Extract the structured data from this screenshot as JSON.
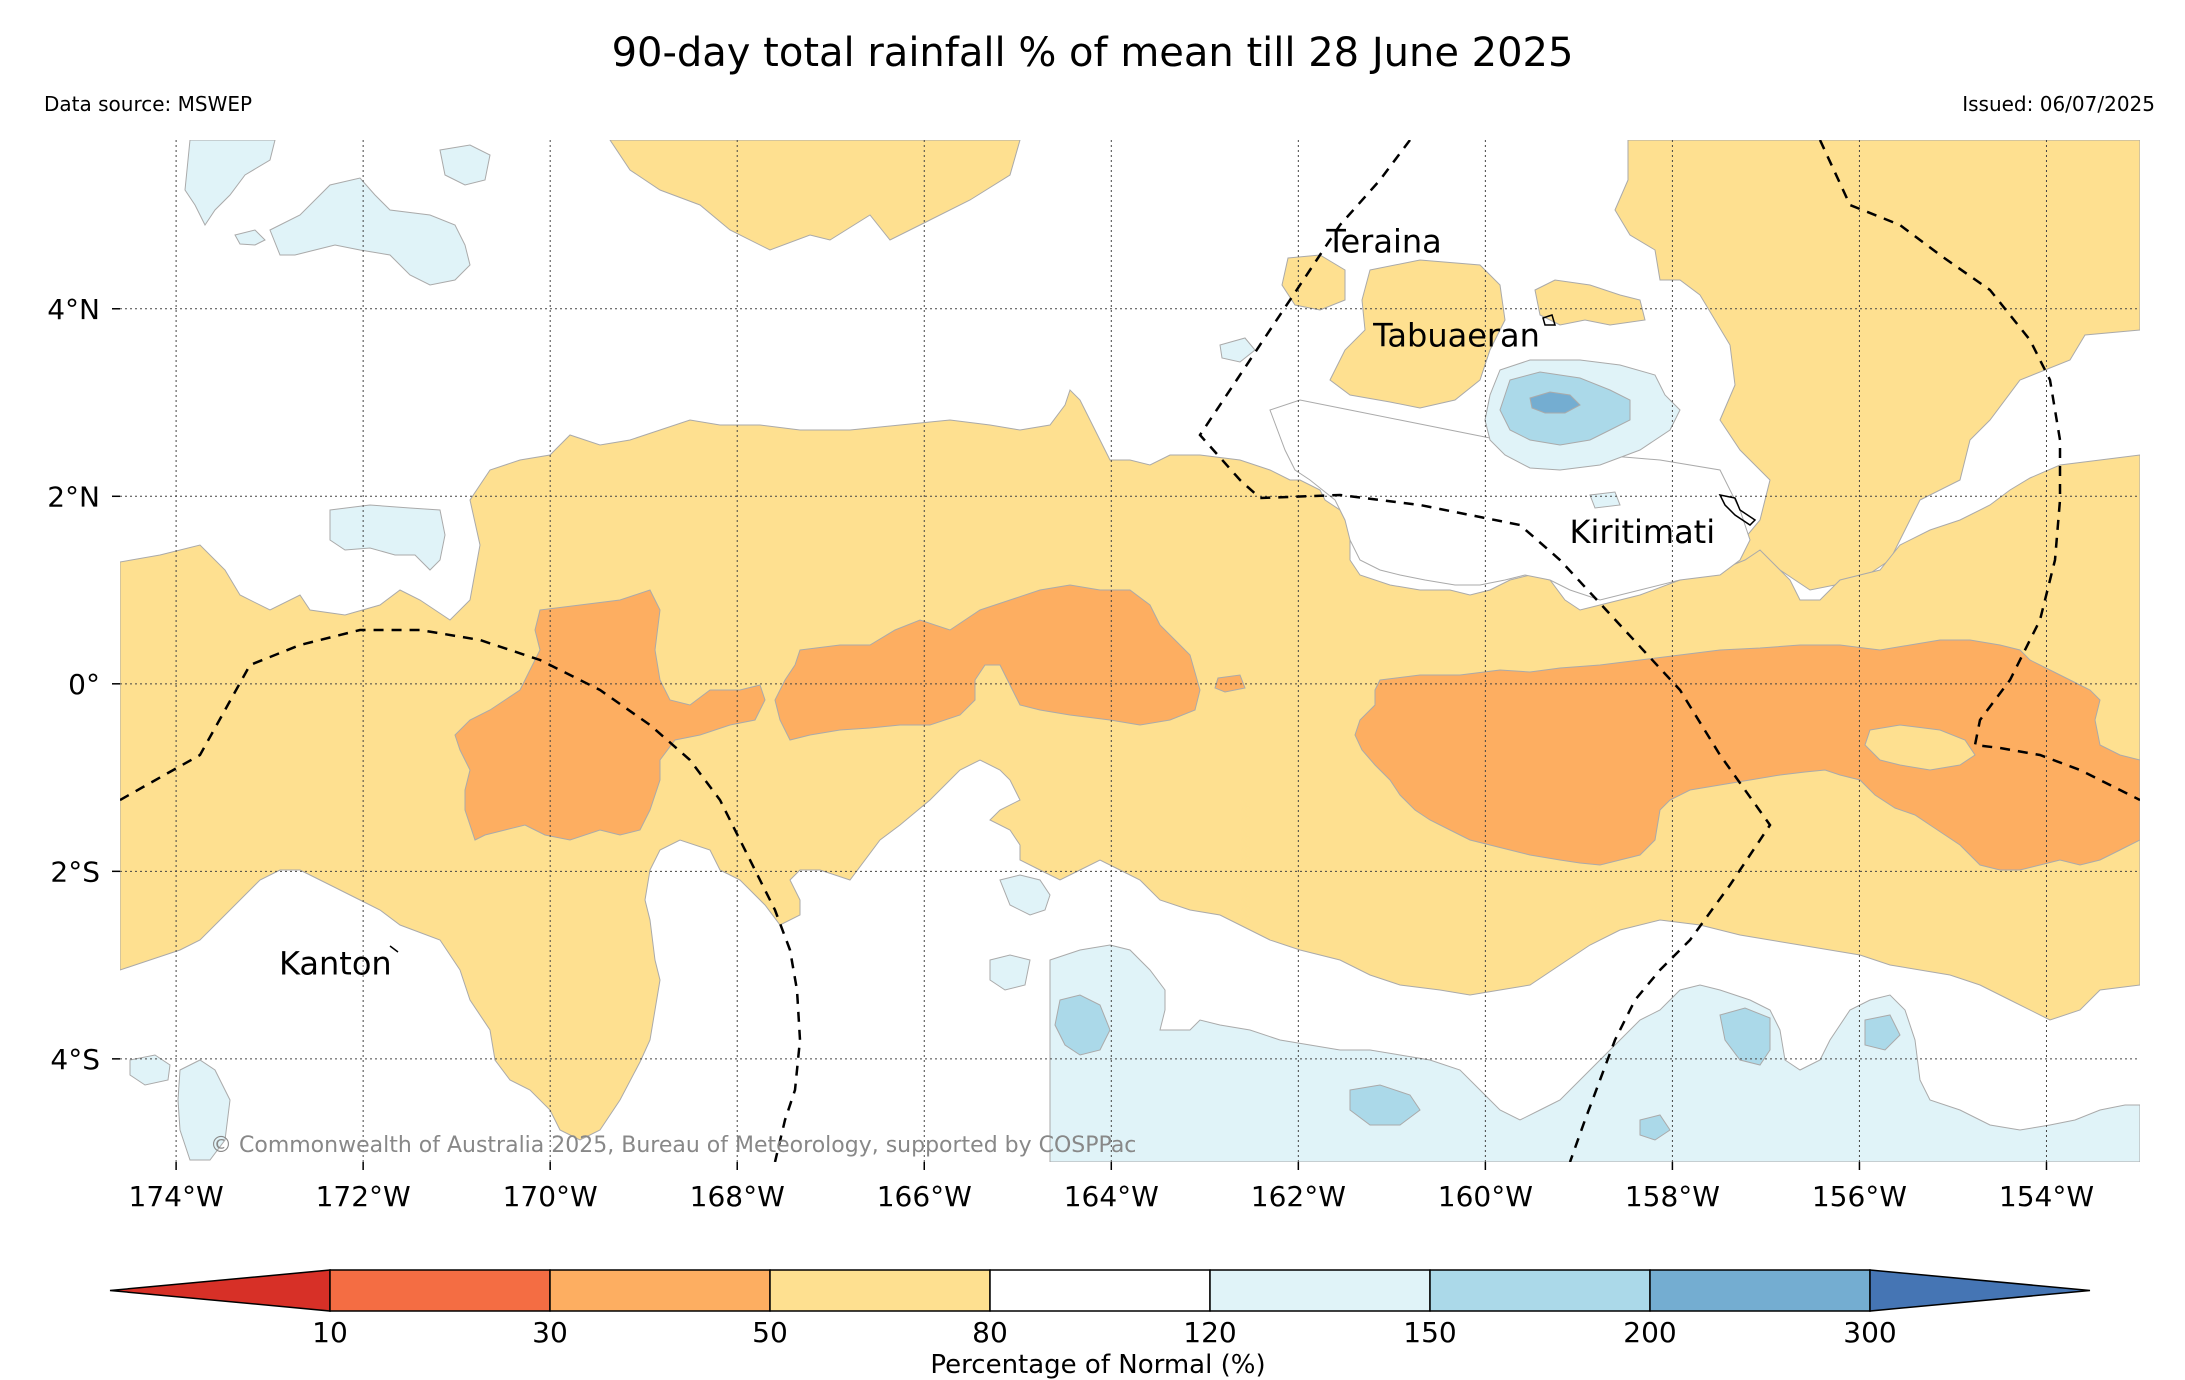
{
  "title": "90-day total rainfall % of mean till 28 June 2025",
  "data_source": "Data source: MSWEP",
  "issued": "Issued: 06/07/2025",
  "copyright": "© Commonwealth of Australia 2025, Bureau of Meteorology, supported by COSPPac",
  "map": {
    "lon_range": [
      -174.6,
      -153.0
    ],
    "lat_range": [
      -5.1,
      5.8
    ],
    "lon_ticks": [
      "174°W",
      "172°W",
      "170°W",
      "168°W",
      "166°W",
      "164°W",
      "162°W",
      "160°W",
      "158°W",
      "156°W",
      "154°W"
    ],
    "lat_ticks": [
      "4°N",
      "2°N",
      "0°",
      "2°S",
      "4°S"
    ],
    "grid": "dotted",
    "places": [
      {
        "name": "Teraina",
        "lon": -161.7,
        "lat": 4.6
      },
      {
        "name": "Tabuaeran",
        "lon": -161.2,
        "lat": 3.6
      },
      {
        "name": "Kiritimati",
        "lon": -159.1,
        "lat": 1.5
      },
      {
        "name": "Kanton",
        "lon": -172.9,
        "lat": -3.1
      }
    ]
  },
  "legend": {
    "label": "Percentage of Normal (%)",
    "ticks": [
      "10",
      "30",
      "50",
      "80",
      "120",
      "150",
      "200",
      "300"
    ],
    "colors": [
      "#d73027",
      "#f46d43",
      "#fdae61",
      "#fee090",
      "#ffffff",
      "#e0f3f8",
      "#abd9e9",
      "#74add1",
      "#4575b4"
    ]
  }
}
